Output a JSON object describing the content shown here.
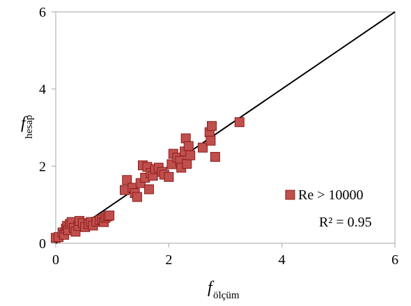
{
  "chart_data": {
    "type": "scatter",
    "xlabel": {
      "main": "f",
      "sub": "ölçüm"
    },
    "ylabel": {
      "main": "f",
      "sub": "hesap"
    },
    "xlim": [
      0,
      6
    ],
    "ylim": [
      0,
      6
    ],
    "xticks": [
      "0",
      "2",
      "4",
      "6"
    ],
    "yticks": [
      "0",
      "2",
      "4",
      "6"
    ],
    "grid": false,
    "legend_position": "bottom-right",
    "series": [
      {
        "name": "Re > 10000",
        "marker": "square",
        "color": "#c0504d",
        "edge_color": "#8b1a1a",
        "points": [
          [
            0.0,
            0.14
          ],
          [
            0.05,
            0.16
          ],
          [
            0.12,
            0.28
          ],
          [
            0.15,
            0.22
          ],
          [
            0.18,
            0.38
          ],
          [
            0.2,
            0.45
          ],
          [
            0.22,
            0.34
          ],
          [
            0.25,
            0.5
          ],
          [
            0.28,
            0.55
          ],
          [
            0.32,
            0.4
          ],
          [
            0.35,
            0.3
          ],
          [
            0.4,
            0.45
          ],
          [
            0.42,
            0.58
          ],
          [
            0.48,
            0.52
          ],
          [
            0.52,
            0.42
          ],
          [
            0.58,
            0.5
          ],
          [
            0.62,
            0.55
          ],
          [
            0.66,
            0.46
          ],
          [
            0.72,
            0.56
          ],
          [
            0.78,
            0.6
          ],
          [
            0.82,
            0.62
          ],
          [
            0.85,
            0.55
          ],
          [
            0.88,
            0.66
          ],
          [
            0.92,
            0.7
          ],
          [
            0.95,
            0.72
          ],
          [
            1.22,
            1.38
          ],
          [
            1.26,
            1.64
          ],
          [
            1.36,
            1.44
          ],
          [
            1.4,
            1.3
          ],
          [
            1.44,
            1.2
          ],
          [
            1.5,
            1.56
          ],
          [
            1.54,
            2.02
          ],
          [
            1.58,
            1.7
          ],
          [
            1.62,
            1.98
          ],
          [
            1.65,
            1.4
          ],
          [
            1.68,
            1.82
          ],
          [
            1.72,
            1.75
          ],
          [
            1.76,
            1.92
          ],
          [
            1.82,
            1.96
          ],
          [
            1.88,
            1.85
          ],
          [
            1.92,
            1.78
          ],
          [
            2.0,
            1.72
          ],
          [
            2.05,
            2.05
          ],
          [
            2.08,
            2.32
          ],
          [
            2.15,
            2.22
          ],
          [
            2.2,
            2.14
          ],
          [
            2.22,
            1.96
          ],
          [
            2.28,
            2.38
          ],
          [
            2.3,
            2.72
          ],
          [
            2.32,
            2.06
          ],
          [
            2.35,
            2.52
          ],
          [
            2.38,
            2.28
          ],
          [
            2.6,
            2.48
          ],
          [
            2.72,
            2.88
          ],
          [
            2.74,
            2.66
          ],
          [
            2.76,
            3.04
          ],
          [
            2.82,
            2.24
          ],
          [
            3.25,
            3.14
          ]
        ]
      }
    ],
    "reference_line": {
      "from": [
        0,
        0
      ],
      "to": [
        6,
        6
      ]
    },
    "annotations": [
      {
        "text": "R² = 0.95"
      }
    ]
  }
}
